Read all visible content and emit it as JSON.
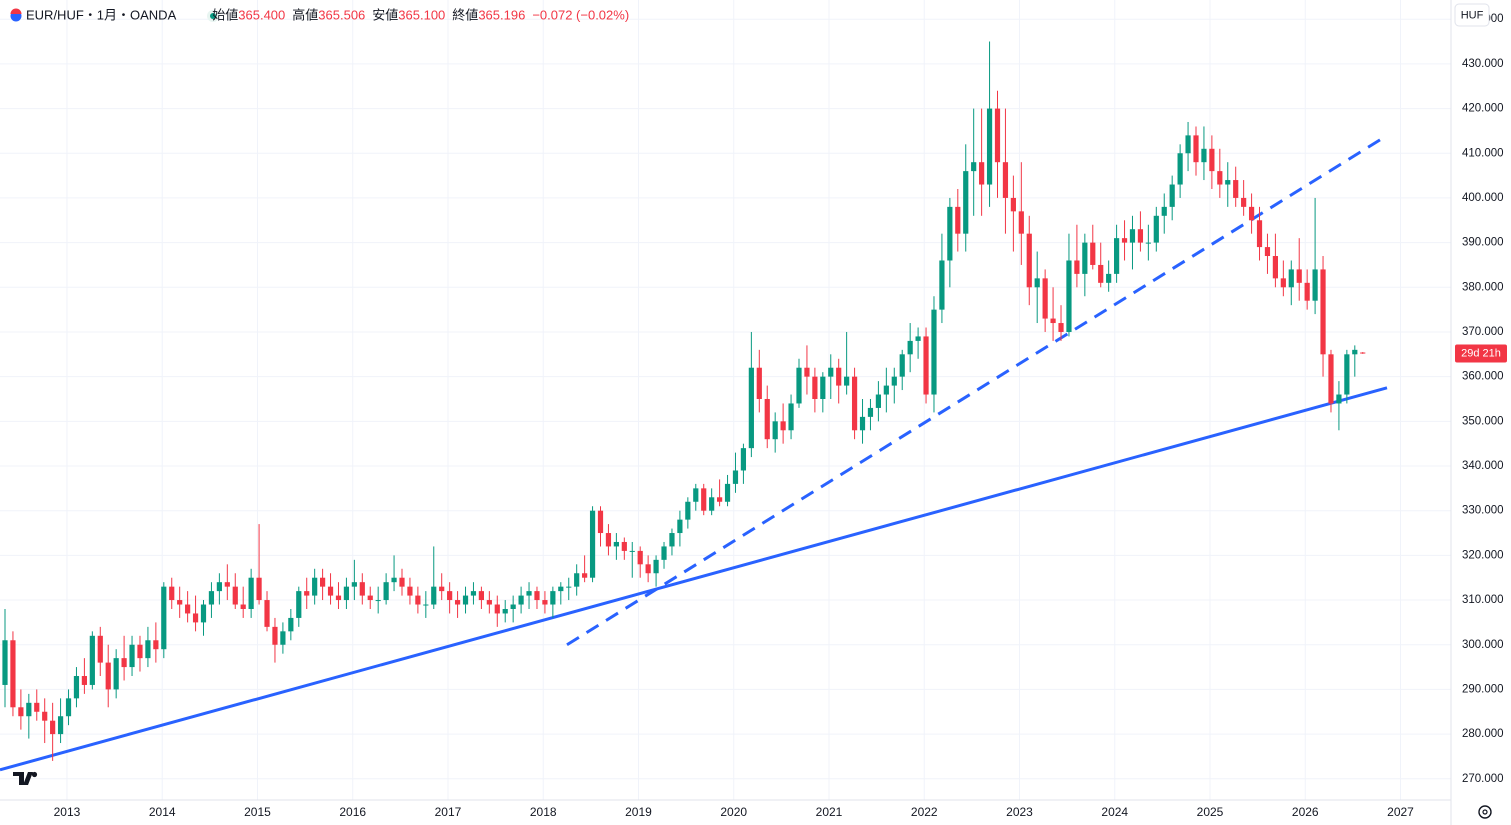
{
  "chart_data": {
    "type": "candlestick",
    "title": "EUR/HUF・1月・OANDA",
    "ohlc_labels": [
      "始値",
      "高値",
      "安値",
      "終値"
    ],
    "ohlc_values": [
      {
        "value": 365.4,
        "label": "365.400"
      },
      {
        "value": 365.506,
        "label": "365.506"
      },
      {
        "value": 365.1,
        "label": "365.100"
      },
      {
        "value": 365.196,
        "label": "365.196"
      }
    ],
    "change": {
      "value": -0.072,
      "label": "−0.072 (−0.02%)"
    },
    "currency": "HUF",
    "countdown": "29d 21h",
    "up_color": "#089981",
    "down_color": "#f23645",
    "line_color": "#2962ff",
    "grid": true,
    "ylim": [
      265.25,
      444.3
    ],
    "yticks": [
      {
        "value": 270,
        "label": "270.000"
      },
      {
        "value": 280,
        "label": "280.000"
      },
      {
        "value": 290,
        "label": "290.000"
      },
      {
        "value": 300,
        "label": "300.000"
      },
      {
        "value": 310,
        "label": "310.000"
      },
      {
        "value": 320,
        "label": "320.000"
      },
      {
        "value": 330,
        "label": "330.000"
      },
      {
        "value": 340,
        "label": "340.000"
      },
      {
        "value": 350,
        "label": "350.000"
      },
      {
        "value": 360,
        "label": "360.000"
      },
      {
        "value": 370,
        "label": "370.000"
      },
      {
        "value": 380,
        "label": "380.000"
      },
      {
        "value": 390,
        "label": "390.000"
      },
      {
        "value": 400,
        "label": "400.000"
      },
      {
        "value": 410,
        "label": "410.000"
      },
      {
        "value": 420,
        "label": "420.000"
      },
      {
        "value": 430,
        "label": "430.000"
      },
      {
        "value": 440,
        "label": "440.000"
      }
    ],
    "xlim": [
      2012.297,
      2027.53
    ],
    "xticks": [
      2013,
      2014,
      2015,
      2016,
      2017,
      2018,
      2019,
      2020,
      2021,
      2022,
      2023,
      2024,
      2025,
      2026,
      2027
    ],
    "trendlines": [
      {
        "values": [
          272,
          357.5
        ],
        "dashed": false
      },
      {
        "values": [
          300,
          413
        ],
        "dashed": true
      }
    ],
    "candles": [
      [
        291,
        308,
        286,
        301
      ],
      [
        301,
        303,
        284,
        286
      ],
      [
        286,
        290,
        281,
        284
      ],
      [
        284,
        289,
        279,
        287
      ],
      [
        287,
        290,
        283,
        285
      ],
      [
        285,
        288,
        278,
        283
      ],
      [
        283,
        287,
        274,
        280
      ],
      [
        280,
        288,
        278,
        284
      ],
      [
        284,
        290,
        282,
        288
      ],
      [
        288,
        295,
        286,
        293
      ],
      [
        293,
        297,
        289,
        291
      ],
      [
        291,
        303,
        290,
        302
      ],
      [
        302,
        304,
        293,
        296
      ],
      [
        296,
        300,
        286,
        290
      ],
      [
        290,
        299,
        288,
        297
      ],
      [
        297,
        302,
        292,
        295
      ],
      [
        295,
        302,
        293,
        300
      ],
      [
        300,
        302,
        294,
        297
      ],
      [
        297,
        304,
        295,
        301
      ],
      [
        301,
        305,
        296,
        299
      ],
      [
        299,
        314,
        297,
        313
      ],
      [
        313,
        315,
        308,
        310
      ],
      [
        310,
        313,
        306,
        309
      ],
      [
        309,
        312,
        305,
        307
      ],
      [
        307,
        311,
        303,
        305
      ],
      [
        305,
        310,
        302,
        309
      ],
      [
        309,
        314,
        306,
        312
      ],
      [
        312,
        316,
        309,
        314
      ],
      [
        314,
        318,
        310,
        313
      ],
      [
        313,
        316,
        308,
        309
      ],
      [
        309,
        313,
        306,
        308
      ],
      [
        308,
        317,
        306,
        315
      ],
      [
        315,
        327,
        309,
        310
      ],
      [
        310,
        312,
        303,
        304
      ],
      [
        304,
        306,
        296,
        300
      ],
      [
        300,
        305,
        298,
        303
      ],
      [
        303,
        308,
        301,
        306
      ],
      [
        306,
        313,
        304,
        312
      ],
      [
        312,
        315,
        308,
        311
      ],
      [
        311,
        317,
        309,
        315
      ],
      [
        315,
        317,
        310,
        313
      ],
      [
        313,
        316,
        309,
        311
      ],
      [
        311,
        314,
        308,
        310
      ],
      [
        310,
        315,
        308,
        313
      ],
      [
        313,
        319,
        310,
        314
      ],
      [
        314,
        316,
        309,
        311
      ],
      [
        311,
        313,
        308,
        310
      ],
      [
        310,
        313,
        307,
        310
      ],
      [
        310,
        316,
        309,
        314
      ],
      [
        314,
        320,
        312,
        315
      ],
      [
        315,
        317,
        311,
        313
      ],
      [
        313,
        315,
        309,
        311
      ],
      [
        311,
        313,
        307,
        309
      ],
      [
        309,
        312,
        306,
        309
      ],
      [
        309,
        322,
        308,
        313
      ],
      [
        313,
        316,
        310,
        312
      ],
      [
        312,
        314,
        307,
        310
      ],
      [
        310,
        312,
        306,
        309
      ],
      [
        309,
        313,
        307,
        311
      ],
      [
        311,
        314,
        309,
        312
      ],
      [
        312,
        313,
        308,
        310
      ],
      [
        310,
        312,
        307,
        309
      ],
      [
        309,
        311,
        304,
        307
      ],
      [
        307,
        310,
        305,
        308
      ],
      [
        308,
        311,
        305,
        309
      ],
      [
        309,
        313,
        307,
        311
      ],
      [
        311,
        314,
        308,
        312
      ],
      [
        312,
        313,
        308,
        310
      ],
      [
        310,
        312,
        307,
        309
      ],
      [
        309,
        313,
        306,
        312
      ],
      [
        312,
        314,
        309,
        313
      ],
      [
        313,
        315,
        310,
        313
      ],
      [
        313,
        318,
        311,
        316
      ],
      [
        316,
        320,
        314,
        315
      ],
      [
        315,
        331,
        314,
        330
      ],
      [
        330,
        331,
        322,
        325
      ],
      [
        325,
        327,
        320,
        322
      ],
      [
        322,
        325,
        319,
        323
      ],
      [
        323,
        324,
        319,
        321
      ],
      [
        321,
        323,
        315,
        321
      ],
      [
        321,
        322,
        315,
        318
      ],
      [
        318,
        320,
        314,
        316
      ],
      [
        316,
        320,
        313,
        319
      ],
      [
        319,
        323,
        317,
        322
      ],
      [
        322,
        326,
        320,
        325
      ],
      [
        325,
        330,
        322,
        328
      ],
      [
        328,
        333,
        326,
        332
      ],
      [
        332,
        336,
        330,
        335
      ],
      [
        335,
        336,
        329,
        330
      ],
      [
        330,
        335,
        329,
        333
      ],
      [
        333,
        337,
        331,
        332
      ],
      [
        332,
        338,
        331,
        336
      ],
      [
        336,
        343,
        334,
        339
      ],
      [
        339,
        345,
        336,
        344
      ],
      [
        344,
        370,
        342,
        362
      ],
      [
        362,
        366,
        352,
        355
      ],
      [
        355,
        358,
        344,
        346
      ],
      [
        346,
        352,
        343,
        350
      ],
      [
        350,
        354,
        345,
        348
      ],
      [
        348,
        356,
        346,
        354
      ],
      [
        354,
        364,
        353,
        362
      ],
      [
        362,
        367,
        356,
        360
      ],
      [
        360,
        362,
        352,
        355
      ],
      [
        355,
        361,
        352,
        360
      ],
      [
        360,
        365,
        355,
        362
      ],
      [
        362,
        364,
        354,
        358
      ],
      [
        358,
        370,
        356,
        360
      ],
      [
        360,
        362,
        346,
        348
      ],
      [
        348,
        355,
        345,
        351
      ],
      [
        351,
        355,
        348,
        353
      ],
      [
        353,
        359,
        350,
        356
      ],
      [
        356,
        362,
        352,
        358
      ],
      [
        358,
        362,
        354,
        360
      ],
      [
        360,
        366,
        357,
        365
      ],
      [
        365,
        372,
        361,
        368
      ],
      [
        368,
        371,
        364,
        369
      ],
      [
        369,
        371,
        354,
        356
      ],
      [
        356,
        378,
        352,
        375
      ],
      [
        375,
        392,
        372,
        386
      ],
      [
        386,
        400,
        380,
        398
      ],
      [
        398,
        402,
        388,
        392
      ],
      [
        392,
        412,
        388,
        406
      ],
      [
        406,
        420,
        396,
        408
      ],
      [
        408,
        420,
        396,
        403
      ],
      [
        403,
        435,
        398,
        420
      ],
      [
        420,
        424,
        400,
        408
      ],
      [
        408,
        420,
        392,
        400
      ],
      [
        400,
        405,
        388,
        397
      ],
      [
        397,
        408,
        385,
        392
      ],
      [
        392,
        396,
        376,
        380
      ],
      [
        380,
        388,
        372,
        382
      ],
      [
        382,
        384,
        370,
        373
      ],
      [
        373,
        380,
        368,
        372
      ],
      [
        372,
        376,
        368,
        370
      ],
      [
        370,
        392,
        369,
        386
      ],
      [
        386,
        394,
        380,
        383
      ],
      [
        383,
        392,
        378,
        390
      ],
      [
        390,
        394,
        384,
        385
      ],
      [
        385,
        390,
        380,
        381
      ],
      [
        381,
        386,
        379,
        383
      ],
      [
        383,
        394,
        381,
        391
      ],
      [
        391,
        395,
        386,
        390
      ],
      [
        390,
        396,
        384,
        393
      ],
      [
        393,
        397,
        388,
        390
      ],
      [
        390,
        394,
        386,
        390
      ],
      [
        390,
        398,
        388,
        396
      ],
      [
        396,
        401,
        392,
        398
      ],
      [
        398,
        405,
        395,
        403
      ],
      [
        403,
        412,
        400,
        410
      ],
      [
        410,
        417,
        406,
        414
      ],
      [
        414,
        416,
        405,
        408
      ],
      [
        408,
        416,
        404,
        411
      ],
      [
        411,
        414,
        402,
        406
      ],
      [
        406,
        411,
        400,
        403
      ],
      [
        403,
        408,
        398,
        404
      ],
      [
        404,
        407,
        398,
        400
      ],
      [
        400,
        404,
        396,
        398
      ],
      [
        398,
        401,
        392,
        395
      ],
      [
        395,
        398,
        386,
        389
      ],
      [
        389,
        392,
        383,
        387
      ],
      [
        387,
        392,
        380,
        382
      ],
      [
        382,
        386,
        378,
        380
      ],
      [
        380,
        386,
        376,
        384
      ],
      [
        384,
        391,
        377,
        381
      ],
      [
        381,
        384,
        375,
        377
      ],
      [
        377,
        400,
        374,
        384
      ],
      [
        384,
        387,
        360,
        365
      ],
      [
        365,
        366,
        352,
        354
      ],
      [
        354,
        359,
        348,
        356
      ],
      [
        356,
        366,
        354,
        365
      ],
      [
        365,
        367,
        360,
        366
      ],
      [
        365.4,
        365.506,
        365.1,
        365.196
      ]
    ]
  }
}
